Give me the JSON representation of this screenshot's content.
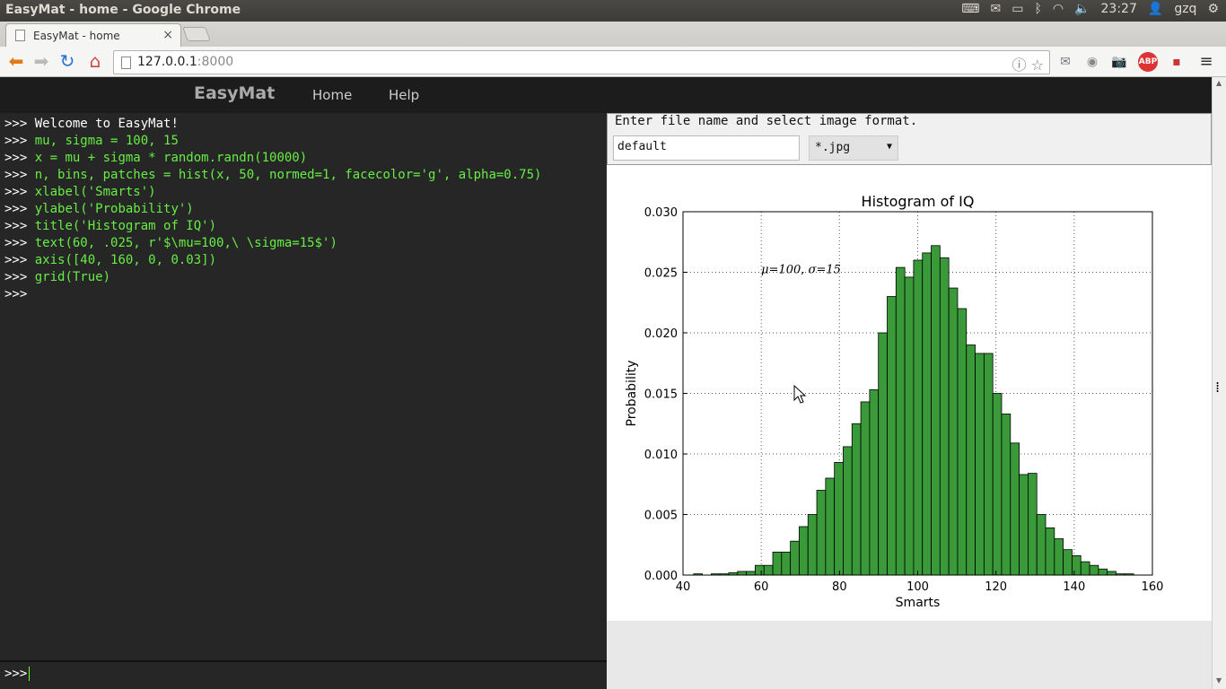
{
  "os": {
    "window_title": "EasyMat - home - Google Chrome",
    "clock": "23:27",
    "user": "gzq"
  },
  "browser": {
    "tab_title": "EasyMat - home",
    "tab_close": "×",
    "url_host": "127.0.0.1",
    "url_port": ":8000"
  },
  "navbar": {
    "brand": "EasyMat",
    "links": [
      "Home",
      "Help"
    ]
  },
  "console": {
    "prompt": ">>>",
    "lines": [
      {
        "text": " Welcome to EasyMat!",
        "kind": "welcome"
      },
      {
        "text": " mu, sigma = 100, 15",
        "kind": "code"
      },
      {
        "text": " x = mu + sigma * random.randn(10000)",
        "kind": "code"
      },
      {
        "text": " n, bins, patches = hist(x, 50, normed=1, facecolor='g', alpha=0.75)",
        "kind": "code"
      },
      {
        "text": " xlabel('Smarts')",
        "kind": "code"
      },
      {
        "text": " ylabel('Probability')",
        "kind": "code"
      },
      {
        "text": " title('Histogram of IQ')",
        "kind": "code"
      },
      {
        "text": " text(60, .025, r'$\\mu=100,\\ \\sigma=15$')",
        "kind": "code"
      },
      {
        "text": " axis([40, 160, 0, 0.03])",
        "kind": "code"
      },
      {
        "text": " grid(True)",
        "kind": "code"
      },
      {
        "text": "",
        "kind": "code"
      }
    ],
    "input_value": ""
  },
  "file_form": {
    "legend": "Enter file name and select image format.",
    "filename": "default",
    "format": "*.jpg"
  },
  "chart_data": {
    "type": "bar",
    "title": "Histogram of IQ",
    "xlabel": "Smarts",
    "ylabel": "Probability",
    "xlim": [
      40,
      160
    ],
    "ylim": [
      0,
      0.03
    ],
    "xticks": [
      "40",
      "60",
      "80",
      "100",
      "120",
      "140",
      "160"
    ],
    "yticks": [
      "0.000",
      "0.005",
      "0.010",
      "0.015",
      "0.020",
      "0.025",
      "0.030"
    ],
    "grid": true,
    "annotation": {
      "text": "μ=100, σ=15",
      "x": 60,
      "y": 0.025
    },
    "bar_color": "#3a9a3a",
    "bin_start": 42.7,
    "bin_width": 2.25,
    "values": [
      0.0001,
      0.0,
      0.0001,
      0.0001,
      0.0002,
      0.0003,
      0.0003,
      0.0008,
      0.0008,
      0.0019,
      0.0019,
      0.0028,
      0.004,
      0.005,
      0.007,
      0.008,
      0.0093,
      0.0106,
      0.0125,
      0.0143,
      0.0153,
      0.02,
      0.023,
      0.0254,
      0.0246,
      0.026,
      0.0266,
      0.0272,
      0.0262,
      0.0237,
      0.022,
      0.019,
      0.0183,
      0.0183,
      0.015,
      0.0133,
      0.0109,
      0.0083,
      0.0084,
      0.005,
      0.0039,
      0.003,
      0.0021,
      0.0016,
      0.0011,
      0.0008,
      0.0005,
      0.0003,
      0.0001,
      0.0001
    ]
  }
}
